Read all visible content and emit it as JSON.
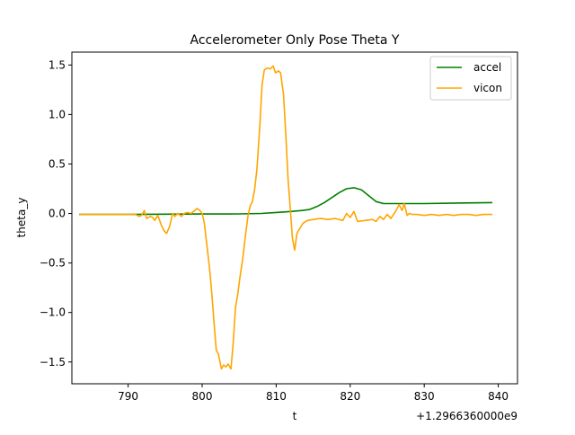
{
  "chart_data": {
    "type": "line",
    "title": "Accelerometer Only Pose Theta Y",
    "xlabel": "t",
    "ylabel": "theta_y",
    "x_offset_label": "+1.2966360000e9",
    "xlim": [
      782.4,
      842.6
    ],
    "ylim": [
      -1.72,
      1.63
    ],
    "x_ticks": [
      790,
      800,
      810,
      820,
      830,
      840
    ],
    "y_ticks": [
      -1.5,
      -1.0,
      -0.5,
      0.0,
      0.5,
      1.0,
      1.5
    ],
    "y_tick_labels": [
      "−1.5",
      "−1.0",
      "−0.5",
      "0.0",
      "0.5",
      "1.0",
      "1.5"
    ],
    "grid": false,
    "legend_position": "top-right",
    "series": [
      {
        "name": "accel",
        "color": "#008000",
        "points": [
          [
            783.4,
            -0.01
          ],
          [
            790,
            -0.01
          ],
          [
            795,
            -0.007
          ],
          [
            800,
            -0.005
          ],
          [
            805,
            -0.004
          ],
          [
            808,
            0.0
          ],
          [
            810,
            0.01
          ],
          [
            812,
            0.02
          ],
          [
            813.5,
            0.03
          ],
          [
            814.5,
            0.04
          ],
          [
            815.5,
            0.07
          ],
          [
            816.5,
            0.11
          ],
          [
            817.5,
            0.16
          ],
          [
            818.5,
            0.21
          ],
          [
            819.5,
            0.25
          ],
          [
            820.5,
            0.26
          ],
          [
            821.5,
            0.24
          ],
          [
            822.5,
            0.18
          ],
          [
            823.5,
            0.12
          ],
          [
            824.5,
            0.1
          ],
          [
            830,
            0.1
          ],
          [
            839.2,
            0.11
          ]
        ]
      },
      {
        "name": "vicon",
        "color": "#ffa500",
        "points": [
          [
            783.4,
            -0.01
          ],
          [
            788,
            -0.01
          ],
          [
            791,
            -0.01
          ],
          [
            791.5,
            -0.03
          ],
          [
            791.8,
            -0.02
          ],
          [
            792.2,
            0.03
          ],
          [
            792.5,
            -0.05
          ],
          [
            793,
            -0.03
          ],
          [
            793.3,
            -0.04
          ],
          [
            793.6,
            -0.07
          ],
          [
            794,
            -0.02
          ],
          [
            794.5,
            -0.12
          ],
          [
            794.9,
            -0.18
          ],
          [
            795.2,
            -0.2
          ],
          [
            795.6,
            -0.13
          ],
          [
            796,
            0.0
          ],
          [
            796.3,
            -0.03
          ],
          [
            796.7,
            0.0
          ],
          [
            797.2,
            -0.03
          ],
          [
            797.6,
            -0.0
          ],
          [
            798,
            0.01
          ],
          [
            798.5,
            0.0
          ],
          [
            799,
            0.03
          ],
          [
            799.3,
            0.05
          ],
          [
            799.7,
            0.03
          ],
          [
            800,
            0.0
          ],
          [
            800.3,
            -0.1
          ],
          [
            800.6,
            -0.3
          ],
          [
            801,
            -0.55
          ],
          [
            801.3,
            -0.8
          ],
          [
            801.6,
            -1.1
          ],
          [
            801.9,
            -1.38
          ],
          [
            802.2,
            -1.42
          ],
          [
            802.6,
            -1.57
          ],
          [
            802.9,
            -1.53
          ],
          [
            803.2,
            -1.55
          ],
          [
            803.5,
            -1.52
          ],
          [
            803.9,
            -1.57
          ],
          [
            804.2,
            -1.3
          ],
          [
            804.5,
            -0.95
          ],
          [
            804.8,
            -0.82
          ],
          [
            805.1,
            -0.65
          ],
          [
            805.5,
            -0.45
          ],
          [
            805.8,
            -0.25
          ],
          [
            806.2,
            -0.02
          ],
          [
            806.5,
            0.08
          ],
          [
            806.8,
            0.12
          ],
          [
            807.1,
            0.25
          ],
          [
            807.4,
            0.45
          ],
          [
            807.8,
            0.9
          ],
          [
            808.1,
            1.3
          ],
          [
            808.4,
            1.45
          ],
          [
            808.8,
            1.47
          ],
          [
            809.2,
            1.46
          ],
          [
            809.6,
            1.49
          ],
          [
            809.9,
            1.42
          ],
          [
            810.3,
            1.44
          ],
          [
            810.6,
            1.42
          ],
          [
            811,
            1.2
          ],
          [
            811.3,
            0.8
          ],
          [
            811.6,
            0.35
          ],
          [
            811.9,
            0.05
          ],
          [
            812.2,
            -0.25
          ],
          [
            812.5,
            -0.37
          ],
          [
            812.8,
            -0.2
          ],
          [
            813.2,
            -0.15
          ],
          [
            813.6,
            -0.1
          ],
          [
            814.2,
            -0.07
          ],
          [
            815,
            -0.06
          ],
          [
            816,
            -0.05
          ],
          [
            817,
            -0.06
          ],
          [
            818,
            -0.05
          ],
          [
            819,
            -0.07
          ],
          [
            819.5,
            -0.0
          ],
          [
            820,
            -0.04
          ],
          [
            820.5,
            0.02
          ],
          [
            821,
            -0.08
          ],
          [
            822,
            -0.07
          ],
          [
            823,
            -0.06
          ],
          [
            823.5,
            -0.08
          ],
          [
            824,
            -0.03
          ],
          [
            824.5,
            -0.06
          ],
          [
            825,
            -0.01
          ],
          [
            825.5,
            -0.05
          ],
          [
            826.2,
            0.03
          ],
          [
            826.6,
            0.09
          ],
          [
            827,
            0.03
          ],
          [
            827.3,
            0.1
          ],
          [
            827.7,
            -0.02
          ],
          [
            828,
            0.0
          ],
          [
            828.4,
            -0.01
          ],
          [
            829,
            -0.01
          ],
          [
            830,
            -0.02
          ],
          [
            831,
            -0.01
          ],
          [
            832,
            -0.02
          ],
          [
            833,
            -0.01
          ],
          [
            834,
            -0.02
          ],
          [
            835,
            -0.01
          ],
          [
            836,
            -0.01
          ],
          [
            837,
            -0.02
          ],
          [
            838,
            -0.01
          ],
          [
            839.2,
            -0.01
          ]
        ]
      }
    ]
  }
}
